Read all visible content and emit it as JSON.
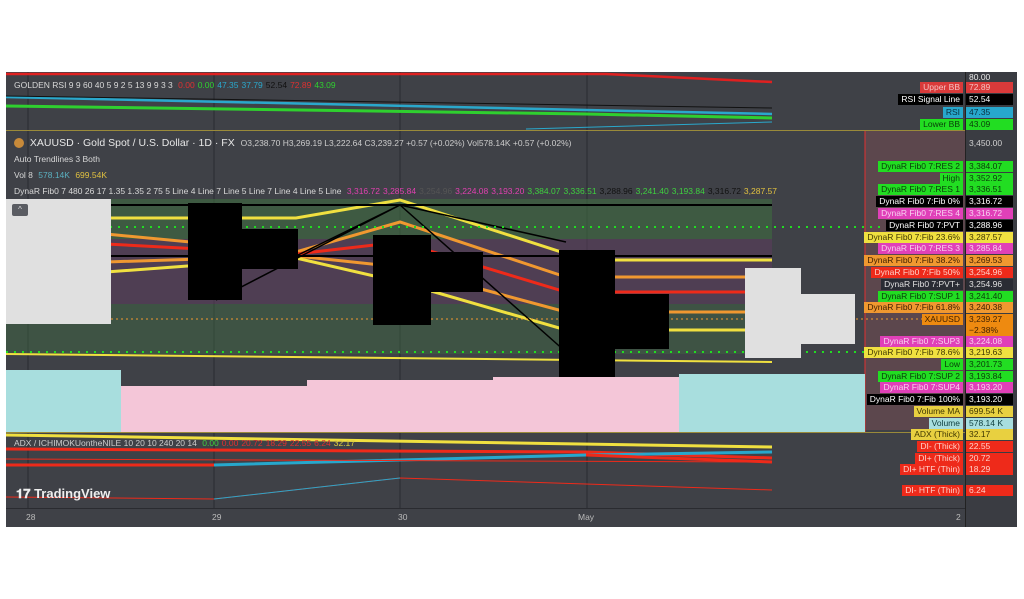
{
  "rsi_pane": {
    "title": "GOLDEN RSI 9 9 60 40 5 9 2 5 13 9 9 3 3",
    "values": [
      {
        "text": "0.00",
        "color": "#e03030"
      },
      {
        "text": "0.00",
        "color": "#2fd02f"
      },
      {
        "text": "47.35",
        "color": "#2aa8cc"
      },
      {
        "text": "37.79",
        "color": "#2aa8cc"
      },
      {
        "text": "52.54",
        "color": "#111111"
      },
      {
        "text": "72.89",
        "color": "#e03030"
      },
      {
        "text": "43.09",
        "color": "#2fd02f"
      }
    ],
    "top_axis_value": "80.00"
  },
  "main_pane": {
    "symbol_title": "XAUUSD · Gold Spot / U.S. Dollar · 1D · FX",
    "ohlc": "O3,238.70  H3,269.19  L3,222.64  C3,239.27  +0.57 (+0.02%)  Vol578.14K  +0.57 (+0.02%)",
    "indicator_1": "Auto Trendlines 3 Both",
    "vol_label": "Vol 8",
    "vol_value": "578.14K",
    "vol_ma_value": "699.54K",
    "dynar_title": "DynaR Fib0 7 480 26 17 1.35 1.35 2 75 5 Line 4 Line 7 Line 5 Line 7 Line 4 Line 5 Line",
    "dynar_values": [
      {
        "text": "3,316.72",
        "color": "#e040b0"
      },
      {
        "text": "3,285.84",
        "color": "#e040b0"
      },
      {
        "text": "3,254.96",
        "color": "#555555"
      },
      {
        "text": "3,224.08",
        "color": "#e040b0"
      },
      {
        "text": "3,193.20",
        "color": "#e040b0"
      },
      {
        "text": "3,384.07",
        "color": "#3fd03f"
      },
      {
        "text": "3,336.51",
        "color": "#3fd03f"
      },
      {
        "text": "3,288.96",
        "color": "#111111"
      },
      {
        "text": "3,241.40",
        "color": "#3fd03f"
      },
      {
        "text": "3,193.84",
        "color": "#3fd03f"
      },
      {
        "text": "3,316.72",
        "color": "#111111"
      },
      {
        "text": "3,287.57",
        "color": "#e0c040"
      }
    ],
    "collapse_icon": "chevron-up-icon"
  },
  "adx_pane": {
    "title": "ADX / ICHIMOKUontheNILE 10 20 10 240 20 14",
    "values": [
      {
        "text": "0.00",
        "color": "#3fd03f"
      },
      {
        "text": "0.00",
        "color": "#e03030"
      },
      {
        "text": "20.72",
        "color": "#e03030"
      },
      {
        "text": "18.29",
        "color": "#e03030"
      },
      {
        "text": "22.55",
        "color": "#e03030"
      },
      {
        "text": "6.24",
        "color": "#e03030"
      },
      {
        "text": "32.17",
        "color": "#e0d040"
      }
    ]
  },
  "price_labels": [
    {
      "name": "Upper BB",
      "value": "72.89",
      "bg": "#d93a3a",
      "fg": "#f3c0c0"
    },
    {
      "name": "RSI Signal Line",
      "value": "52.54",
      "bg": "#000000",
      "fg": "#ffffff"
    },
    {
      "name": "RSI",
      "value": "47.35",
      "bg": "#27a7cc",
      "fg": "#0a3040"
    },
    {
      "name": "Lower BB",
      "value": "43.09",
      "bg": "#22dd22",
      "fg": "#0a400a"
    },
    {
      "name": "",
      "value": "3,450.00",
      "bg": "transparent",
      "fg": "#d0d0d0"
    },
    {
      "name": "DynaR Fib0 7:RES 2",
      "value": "3,384.07",
      "bg": "#22dd22",
      "fg": "#0a400a"
    },
    {
      "name": "High",
      "value": "3,352.92",
      "bg": "#22dd22",
      "fg": "#0a400a"
    },
    {
      "name": "DynaR Fib0 7:RES 1",
      "value": "3,336.51",
      "bg": "#22dd22",
      "fg": "#0a400a"
    },
    {
      "name": "DynaR Fib0 7:Fib 0%",
      "value": "3,316.72",
      "bg": "#000000",
      "fg": "#ffffff"
    },
    {
      "name": "DynaR Fib0 7:RES 4",
      "value": "3,316.72",
      "bg": "#e040b8",
      "fg": "#f8d0f0"
    },
    {
      "name": "DynaR Fib0 7:PVT",
      "value": "3,288.96",
      "bg": "#000000",
      "fg": "#ffffff"
    },
    {
      "name": "DynaR Fib0 7:Fib 23.6%",
      "value": "3,287.57",
      "bg": "#f0e040",
      "fg": "#403800"
    },
    {
      "name": "DynaR Fib0 7:RES 3",
      "value": "3,285.84",
      "bg": "#e040b8",
      "fg": "#f8d0f0"
    },
    {
      "name": "DynaR Fib0 7:Fib 38.2%",
      "value": "3,269.53",
      "bg": "#f09830",
      "fg": "#402000"
    },
    {
      "name": "DynaR Fib0 7:Fib 50%",
      "value": "3,254.96",
      "bg": "#ee2a1a",
      "fg": "#ffd0c8"
    },
    {
      "name": "DynaR Fib0 7:PVT+",
      "value": "3,254.96",
      "bg": "#2a2c34",
      "fg": "#e0e0e0"
    },
    {
      "name": "DynaR Fib0 7:SUP 1",
      "value": "3,241.40",
      "bg": "#22dd22",
      "fg": "#0a400a"
    },
    {
      "name": "DynaR Fib0 7:Fib 61.8%",
      "value": "3,240.38",
      "bg": "#f09830",
      "fg": "#402000"
    },
    {
      "name": "XAUUSD",
      "value": "3,239.27",
      "sub": "−2.38%",
      "bg": "#ee8a10",
      "fg": "#402000"
    },
    {
      "name": "DynaR Fib0 7:SUP3",
      "value": "3,224.08",
      "bg": "#e040b8",
      "fg": "#f8d0f0"
    },
    {
      "name": "DynaR Fib0 7:Fib 78.6%",
      "value": "3,219.63",
      "bg": "#f0e040",
      "fg": "#403800"
    },
    {
      "name": "Low",
      "value": "3,201.73",
      "bg": "#22dd22",
      "fg": "#0a400a"
    },
    {
      "name": "DynaR Fib0 7:SUP 2",
      "value": "3,193.84",
      "bg": "#22dd22",
      "fg": "#0a400a"
    },
    {
      "name": "DynaR Fib0 7:SUP4",
      "value": "3,193.20",
      "bg": "#e040b8",
      "fg": "#f8d0f0"
    },
    {
      "name": "DynaR Fib0 7:Fib 100%",
      "value": "3,193.20",
      "bg": "#000000",
      "fg": "#ffffff"
    },
    {
      "name": "Volume MA",
      "value": "699.54 K",
      "bg": "#e8d040",
      "fg": "#403800"
    },
    {
      "name": "Volume",
      "value": "578.14 K",
      "bg": "#a8dede",
      "fg": "#104040"
    },
    {
      "name": "ADX (Thick)",
      "value": "32.17",
      "bg": "#e8d040",
      "fg": "#403800"
    },
    {
      "name": "DI- (Thick)",
      "value": "22.55",
      "bg": "#ee2a1a",
      "fg": "#ffd0c8"
    },
    {
      "name": "DI+ (Thick)",
      "value": "20.72",
      "bg": "#ee2a1a",
      "fg": "#ffd0c8"
    },
    {
      "name": "DI+ HTF (Thin)",
      "value": "18.29",
      "bg": "#ee2a1a",
      "fg": "#ffd0c8"
    },
    {
      "name": "DI- HTF (Thin)",
      "value": "6.24",
      "bg": "#ee2a1a",
      "fg": "#ffd0c8"
    }
  ],
  "time_axis": [
    "28",
    "29",
    "30",
    "May",
    "2"
  ],
  "branding": "TradingView"
}
